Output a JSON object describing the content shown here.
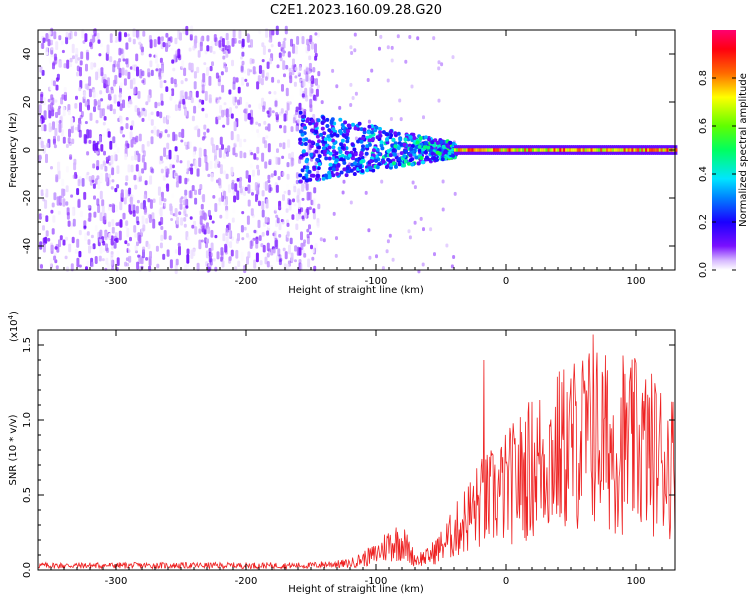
{
  "title": "C2E1.2023.160.09.28.G20",
  "chart_data": [
    {
      "type": "heatmap",
      "title": "C2E1.2023.160.09.28.G20",
      "xlabel": "Height of straight line (km)",
      "ylabel": "Frequency (Hz)",
      "xlim": [
        -360,
        130
      ],
      "ylim": [
        -50,
        50
      ],
      "x_ticks": [
        -300,
        -200,
        -100,
        0,
        100
      ],
      "x_tick_labels": [
        "-300",
        "-200",
        "-100",
        "0",
        "100"
      ],
      "y_ticks": [
        -40,
        -20,
        0,
        20,
        40
      ],
      "y_tick_labels": [
        "-40",
        "-20",
        "0",
        "20",
        "40"
      ],
      "colorbar": {
        "label": "Normalized spectral amplitude",
        "range": [
          0,
          1
        ],
        "ticks": [
          0.0,
          0.2,
          0.4,
          0.6,
          0.8
        ],
        "tick_labels": [
          "0.0",
          "0.2",
          "0.4",
          "0.6",
          "0.8"
        ],
        "colormap": [
          "#ffffff",
          "#6a00ff",
          "#0000ff",
          "#00e5ff",
          "#00ff00",
          "#ffff00",
          "#ff6600",
          "#ff0000",
          "#ff0066"
        ]
      },
      "description_regions": [
        {
          "x_range": [
            -360,
            -145
          ],
          "freq_range": [
            -50,
            50
          ],
          "amplitude": [
            0.0,
            0.12
          ]
        },
        {
          "x_range": [
            -160,
            -40
          ],
          "freq_range": [
            -15,
            10
          ],
          "amplitude": [
            0.1,
            0.5
          ]
        },
        {
          "x_range": [
            -40,
            130
          ],
          "freq_range": [
            -2,
            2
          ],
          "amplitude": [
            0.6,
            0.9
          ]
        }
      ]
    },
    {
      "type": "line",
      "xlabel": "Height of straight line (km)",
      "ylabel": "SNR (10 * v/v)",
      "y_scale_label": "(x10",
      "y_scale_exponent": "4",
      "y_scale_close": ")",
      "xlim": [
        -360,
        130
      ],
      "ylim": [
        0,
        1.6
      ],
      "x_ticks": [
        -300,
        -200,
        -100,
        0,
        100
      ],
      "x_tick_labels": [
        "-300",
        "-200",
        "-100",
        "0",
        "100"
      ],
      "y_ticks": [
        0.0,
        0.5,
        1.0,
        1.5
      ],
      "y_tick_labels": [
        "0.0",
        "0.5",
        "1.0",
        "1.5"
      ],
      "color": "#ee2222",
      "envelope": {
        "x": [
          -360,
          -250,
          -150,
          -120,
          -100,
          -90,
          -80,
          -70,
          -60,
          -50,
          -40,
          -30,
          -20,
          -10,
          0,
          10,
          20,
          30,
          40,
          50,
          60,
          70,
          80,
          90,
          100,
          110,
          120,
          130
        ],
        "y": [
          0.03,
          0.03,
          0.03,
          0.05,
          0.12,
          0.2,
          0.22,
          0.08,
          0.1,
          0.18,
          0.28,
          0.4,
          0.5,
          0.55,
          0.62,
          0.7,
          0.78,
          0.85,
          0.9,
          0.95,
          1.0,
          1.02,
          0.95,
          0.92,
          0.95,
          0.9,
          0.85,
          0.8
        ]
      },
      "spikes": [
        {
          "x": -17,
          "y": 1.4
        },
        {
          "x": 67,
          "y": 1.57
        },
        {
          "x": 90,
          "y": 1.43
        },
        {
          "x": 100,
          "y": 1.38
        }
      ]
    }
  ]
}
